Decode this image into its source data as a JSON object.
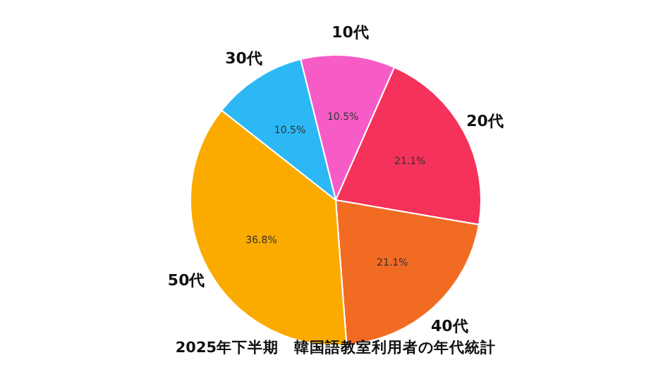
{
  "chart_data": {
    "type": "pie",
    "title": "2025年下半期　韓国語教室利用者の年代統計",
    "categories": [
      "10代",
      "20代",
      "40代",
      "50代",
      "30代"
    ],
    "values": [
      10.5,
      21.1,
      21.1,
      36.8,
      10.5
    ],
    "value_labels": [
      "10.5%",
      "21.1%",
      "21.1%",
      "36.8%",
      "10.5%"
    ],
    "colors": [
      "#f75cc6",
      "#f5325a",
      "#f26b23",
      "#fbab00",
      "#2bb8f5"
    ]
  }
}
